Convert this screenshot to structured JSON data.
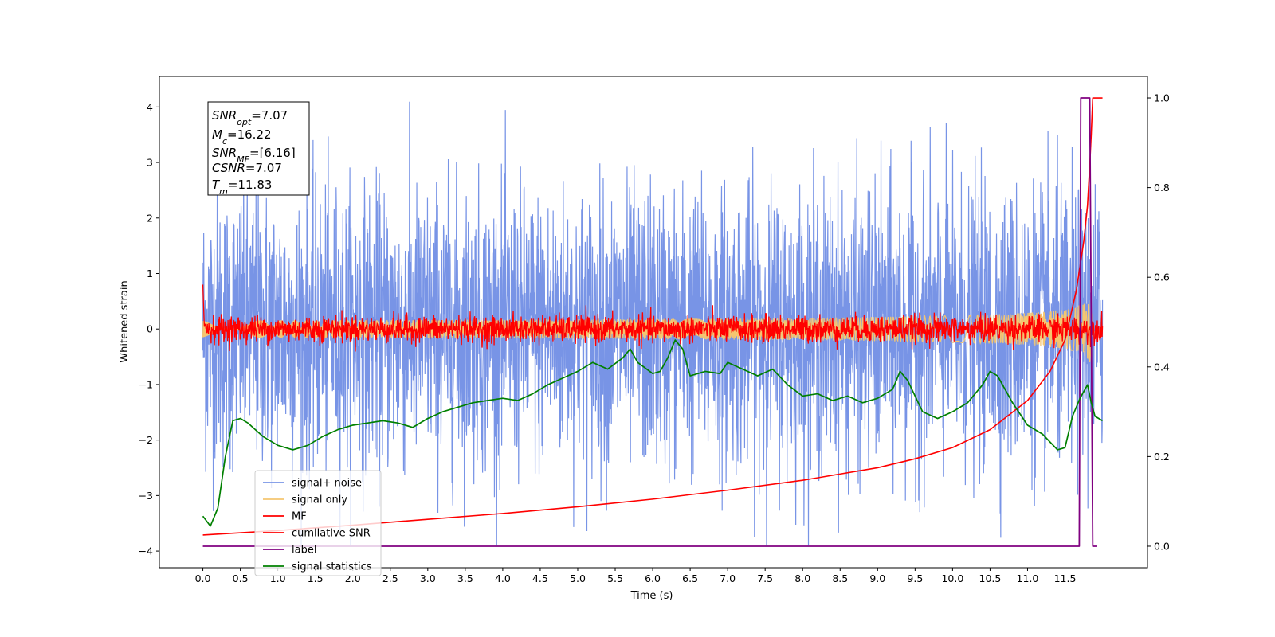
{
  "chart_data": {
    "type": "line",
    "title": "",
    "xlabel": "Time (s)",
    "ylabel": "Whitened strain",
    "ylabel_right": "",
    "xlim": [
      -0.58,
      12.6
    ],
    "ylim": [
      -4.3,
      4.55
    ],
    "ylim_right": [
      -0.048,
      1.048
    ],
    "x_ticks": [
      "0.0",
      "0.5",
      "1.0",
      "1.5",
      "2.0",
      "2.5",
      "3.0",
      "3.5",
      "4.0",
      "4.5",
      "5.0",
      "5.5",
      "6.0",
      "6.5",
      "7.0",
      "7.5",
      "8.0",
      "8.5",
      "9.0",
      "9.5",
      "10.0",
      "10.5",
      "11.0",
      "11.5"
    ],
    "y_ticks_left": [
      "-4",
      "-3",
      "-2",
      "-1",
      "0",
      "1",
      "2",
      "3",
      "4"
    ],
    "y_ticks_right": [
      "0.0",
      "0.2",
      "0.4",
      "0.6",
      "0.8",
      "1.0"
    ],
    "grid": false,
    "legend_position": "bottom-left",
    "annotation": {
      "snr_opt": {
        "sym": "SNR",
        "sub": "opt",
        "value": "=7.07"
      },
      "mc": {
        "sym": "M",
        "sub": "c",
        "value": "=16.22"
      },
      "snr_mf": {
        "sym": "SNR",
        "sub": "MF",
        "value": "=[6.16]"
      },
      "csnr": {
        "sym": "CSNR",
        "value": "=7.07"
      },
      "tm": {
        "sym": "T",
        "sub": "m",
        "value": "=11.83"
      }
    },
    "series": [
      {
        "name": "signal+ noise",
        "color": "#7894e6",
        "axis": "left",
        "x_range": [
          0,
          12.0
        ],
        "std": 1.25,
        "ylim_observed": [
          -3.9,
          4.2
        ]
      },
      {
        "name": "signal only",
        "color": "#f5c670",
        "axis": "left",
        "x_range": [
          0,
          12.0
        ],
        "envelope_peak": 0.6,
        "x_peak": 11.83
      },
      {
        "name": "MF",
        "color": "#ff0000",
        "axis": "left",
        "x_range": [
          0,
          12.0
        ],
        "std": 0.12
      },
      {
        "name": "cumilative SNR",
        "color": "#ff0000",
        "axis": "right",
        "points": [
          [
            0.0,
            0.025
          ],
          [
            1,
            0.035
          ],
          [
            2,
            0.047
          ],
          [
            3,
            0.06
          ],
          [
            4,
            0.073
          ],
          [
            5,
            0.088
          ],
          [
            6,
            0.105
          ],
          [
            7,
            0.125
          ],
          [
            8,
            0.147
          ],
          [
            9,
            0.175
          ],
          [
            9.5,
            0.195
          ],
          [
            10,
            0.22
          ],
          [
            10.5,
            0.26
          ],
          [
            11,
            0.325
          ],
          [
            11.3,
            0.39
          ],
          [
            11.5,
            0.46
          ],
          [
            11.65,
            0.57
          ],
          [
            11.75,
            0.68
          ],
          [
            11.8,
            0.76
          ],
          [
            11.83,
            0.85
          ],
          [
            11.85,
            0.92
          ],
          [
            11.87,
            1.0
          ],
          [
            12.0,
            1.0
          ]
        ]
      },
      {
        "name": "label",
        "color": "#800080",
        "axis": "right",
        "points": [
          [
            0.0,
            0.0
          ],
          [
            11.69,
            0.0
          ],
          [
            11.71,
            1.0
          ],
          [
            11.83,
            1.0
          ],
          [
            11.87,
            0.0
          ],
          [
            11.93,
            0.0
          ]
        ]
      },
      {
        "name": "signal statistics",
        "color": "#008000",
        "axis": "right",
        "points": [
          [
            0.0,
            0.067
          ],
          [
            0.1,
            0.045
          ],
          [
            0.2,
            0.085
          ],
          [
            0.3,
            0.2
          ],
          [
            0.4,
            0.28
          ],
          [
            0.5,
            0.285
          ],
          [
            0.6,
            0.275
          ],
          [
            0.7,
            0.26
          ],
          [
            0.8,
            0.245
          ],
          [
            1.0,
            0.225
          ],
          [
            1.2,
            0.215
          ],
          [
            1.4,
            0.225
          ],
          [
            1.6,
            0.245
          ],
          [
            1.8,
            0.26
          ],
          [
            2.0,
            0.27
          ],
          [
            2.2,
            0.275
          ],
          [
            2.4,
            0.28
          ],
          [
            2.6,
            0.275
          ],
          [
            2.8,
            0.265
          ],
          [
            3.0,
            0.285
          ],
          [
            3.2,
            0.3
          ],
          [
            3.4,
            0.31
          ],
          [
            3.6,
            0.32
          ],
          [
            3.8,
            0.325
          ],
          [
            4.0,
            0.33
          ],
          [
            4.2,
            0.325
          ],
          [
            4.4,
            0.34
          ],
          [
            4.6,
            0.36
          ],
          [
            4.8,
            0.375
          ],
          [
            5.0,
            0.39
          ],
          [
            5.2,
            0.41
          ],
          [
            5.4,
            0.395
          ],
          [
            5.6,
            0.42
          ],
          [
            5.7,
            0.44
          ],
          [
            5.8,
            0.41
          ],
          [
            6.0,
            0.385
          ],
          [
            6.1,
            0.39
          ],
          [
            6.2,
            0.42
          ],
          [
            6.3,
            0.46
          ],
          [
            6.4,
            0.44
          ],
          [
            6.5,
            0.38
          ],
          [
            6.7,
            0.39
          ],
          [
            6.9,
            0.385
          ],
          [
            7.0,
            0.41
          ],
          [
            7.2,
            0.395
          ],
          [
            7.4,
            0.38
          ],
          [
            7.6,
            0.395
          ],
          [
            7.8,
            0.36
          ],
          [
            8.0,
            0.335
          ],
          [
            8.2,
            0.34
          ],
          [
            8.4,
            0.325
          ],
          [
            8.6,
            0.335
          ],
          [
            8.8,
            0.32
          ],
          [
            9.0,
            0.33
          ],
          [
            9.2,
            0.35
          ],
          [
            9.3,
            0.39
          ],
          [
            9.4,
            0.37
          ],
          [
            9.6,
            0.3
          ],
          [
            9.8,
            0.285
          ],
          [
            10.0,
            0.3
          ],
          [
            10.2,
            0.32
          ],
          [
            10.4,
            0.36
          ],
          [
            10.5,
            0.39
          ],
          [
            10.6,
            0.38
          ],
          [
            10.8,
            0.32
          ],
          [
            11.0,
            0.27
          ],
          [
            11.2,
            0.25
          ],
          [
            11.4,
            0.215
          ],
          [
            11.5,
            0.22
          ],
          [
            11.6,
            0.29
          ],
          [
            11.7,
            0.33
          ],
          [
            11.8,
            0.36
          ],
          [
            11.85,
            0.32
          ],
          [
            11.9,
            0.29
          ],
          [
            12.0,
            0.28
          ]
        ]
      }
    ]
  }
}
